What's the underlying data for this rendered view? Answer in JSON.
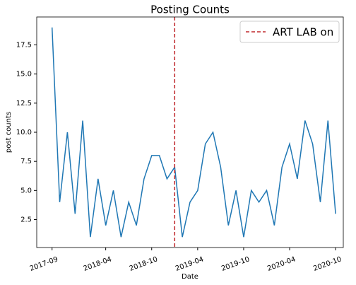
{
  "chart_data": {
    "type": "line",
    "title": "Posting Counts",
    "xlabel": "Date",
    "ylabel": "post counts",
    "x": [
      "2017-09",
      "2017-10",
      "2017-11",
      "2017-12",
      "2018-01",
      "2018-02",
      "2018-03",
      "2018-04",
      "2018-05",
      "2018-06",
      "2018-07",
      "2018-08",
      "2018-09",
      "2018-10",
      "2018-11",
      "2018-12",
      "2019-01",
      "2019-02",
      "2019-03",
      "2019-04",
      "2019-05",
      "2019-06",
      "2019-07",
      "2019-08",
      "2019-09",
      "2019-10",
      "2019-11",
      "2019-12",
      "2020-01",
      "2020-02",
      "2020-03",
      "2020-04",
      "2020-05",
      "2020-06",
      "2020-07",
      "2020-08",
      "2020-09",
      "2020-10"
    ],
    "series": [
      {
        "name": "post counts",
        "color": "#1f77b4",
        "values": [
          19,
          4,
          10,
          3,
          11,
          1,
          6,
          2,
          5,
          1,
          4,
          2,
          6,
          8,
          8,
          6,
          7,
          1,
          4,
          5,
          9,
          10,
          7,
          2,
          5,
          1,
          5,
          4,
          5,
          2,
          7,
          9,
          6,
          11,
          9,
          4,
          11,
          3
        ]
      }
    ],
    "vline": {
      "name": "ART LAB on",
      "x": "2019-01",
      "color": "#c0282d"
    },
    "xlim": [
      "2017-07",
      "2020-11"
    ],
    "xticks": [
      "2017-09",
      "2018-04",
      "2018-10",
      "2019-04",
      "2019-10",
      "2020-04",
      "2020-10"
    ],
    "ylim": [
      0.1,
      19.9
    ],
    "yticks": [
      2.5,
      {
        "value": 5,
        "label": "5.0"
      },
      7.5,
      {
        "value": 10,
        "label": "10.0"
      },
      12.5,
      {
        "value": 15,
        "label": "15.0"
      },
      17.5
    ],
    "grid": false,
    "legend": "upper right"
  }
}
